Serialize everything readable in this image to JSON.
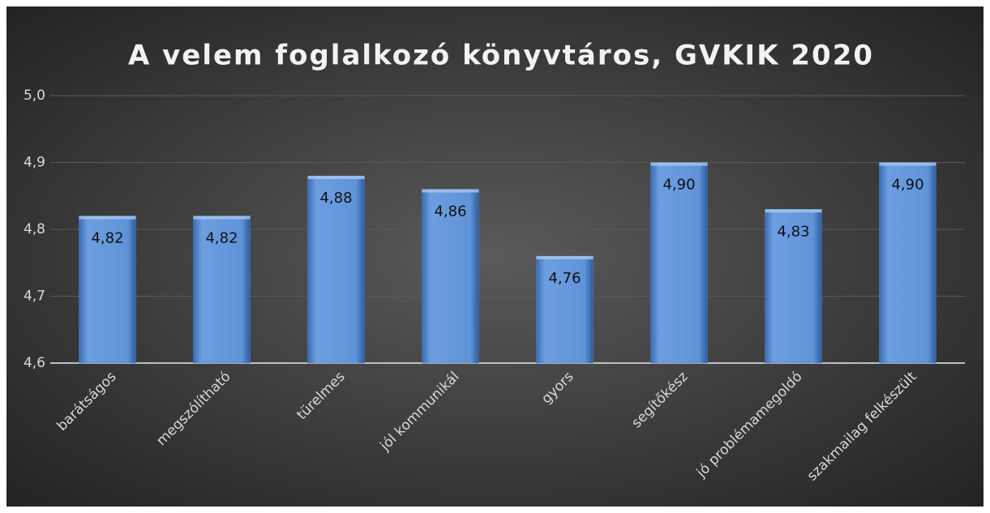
{
  "chart_data": {
    "type": "bar",
    "title": "A velem foglalkozó könyvtáros, GVKIK 2020",
    "categories": [
      "barátságos",
      "megszólítható",
      "türelmes",
      "jól kommunikál",
      "gyors",
      "segítőkész",
      "jó problémamegoldó",
      "szakmailag felkészült"
    ],
    "values": [
      4.82,
      4.82,
      4.88,
      4.86,
      4.76,
      4.9,
      4.83,
      4.9
    ],
    "value_labels": [
      "4,82",
      "4,82",
      "4,88",
      "4,86",
      "4,76",
      "4,90",
      "4,83",
      "4,90"
    ],
    "color": "#4f81c7",
    "ylim": [
      4.6,
      5.0
    ],
    "yticks": [
      {
        "value": 4.6,
        "label": "4,6"
      },
      {
        "value": 4.7,
        "label": "4,7"
      },
      {
        "value": 4.8,
        "label": "4,8"
      },
      {
        "value": 4.9,
        "label": "4,9"
      },
      {
        "value": 5.0,
        "label": "5,0"
      }
    ],
    "grid": true
  }
}
